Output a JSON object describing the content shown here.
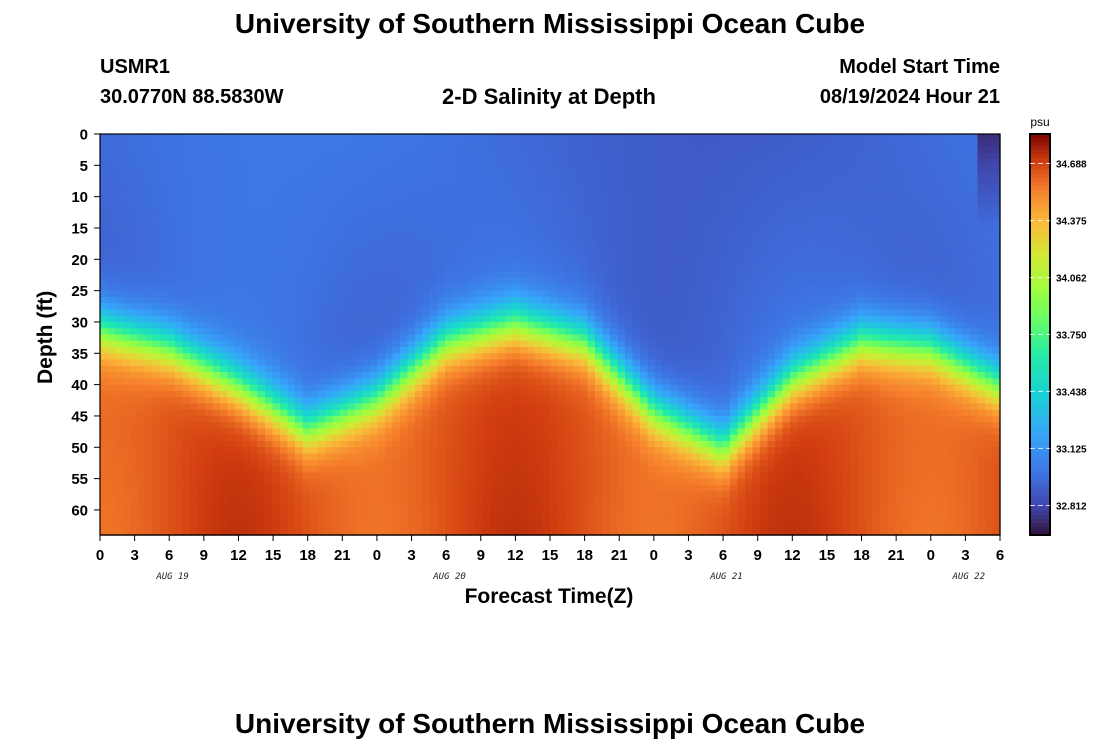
{
  "page": {
    "title": "University of Southern Mississippi Ocean Cube",
    "footer_title": "University of Southern Mississippi Ocean Cube",
    "station_id": "USMR1",
    "station_coords": "30.0770N  88.5830W",
    "subtitle": "2-D Salinity at Depth",
    "model_start_label": "Model Start Time",
    "model_start_value": "08/19/2024 Hour 21"
  },
  "chart_data": {
    "type": "heatmap",
    "title": "2-D Salinity at Depth",
    "xlabel": "Forecast Time(Z)",
    "ylabel": "Depth (ft)",
    "x_tick_labels": [
      "0",
      "3",
      "6",
      "9",
      "12",
      "15",
      "18",
      "21",
      "0",
      "3",
      "6",
      "9",
      "12",
      "15",
      "18",
      "21",
      "0",
      "3",
      "6",
      "9",
      "12",
      "15",
      "18",
      "21",
      "0",
      "3",
      "6"
    ],
    "x_range_hours": [
      0,
      78
    ],
    "date_labels": [
      {
        "label": "AUG 19",
        "hour": 3
      },
      {
        "label": "AUG 20",
        "hour": 27
      },
      {
        "label": "AUG 21",
        "hour": 51
      },
      {
        "label": "AUG 22",
        "hour": 72
      }
    ],
    "y_ticks": [
      0,
      5,
      10,
      15,
      20,
      25,
      30,
      35,
      40,
      45,
      50,
      55,
      60
    ],
    "y_range": [
      0,
      64
    ],
    "colorbar": {
      "unit": "psu",
      "ticks": [
        "34.688",
        "34.375",
        "34.062",
        "33.750",
        "33.438",
        "33.125",
        "32.812"
      ],
      "range": [
        32.65,
        34.85
      ]
    },
    "halocline_depth_ft": {
      "hours": [
        0,
        6,
        12,
        18,
        24,
        30,
        36,
        42,
        48,
        54,
        60,
        66,
        72,
        78
      ],
      "depths": [
        31,
        34,
        40,
        47,
        42,
        33,
        30,
        33,
        44,
        50,
        39,
        33,
        34,
        40
      ]
    },
    "surface_salinity": 32.95,
    "deep_salinity": 34.65
  }
}
